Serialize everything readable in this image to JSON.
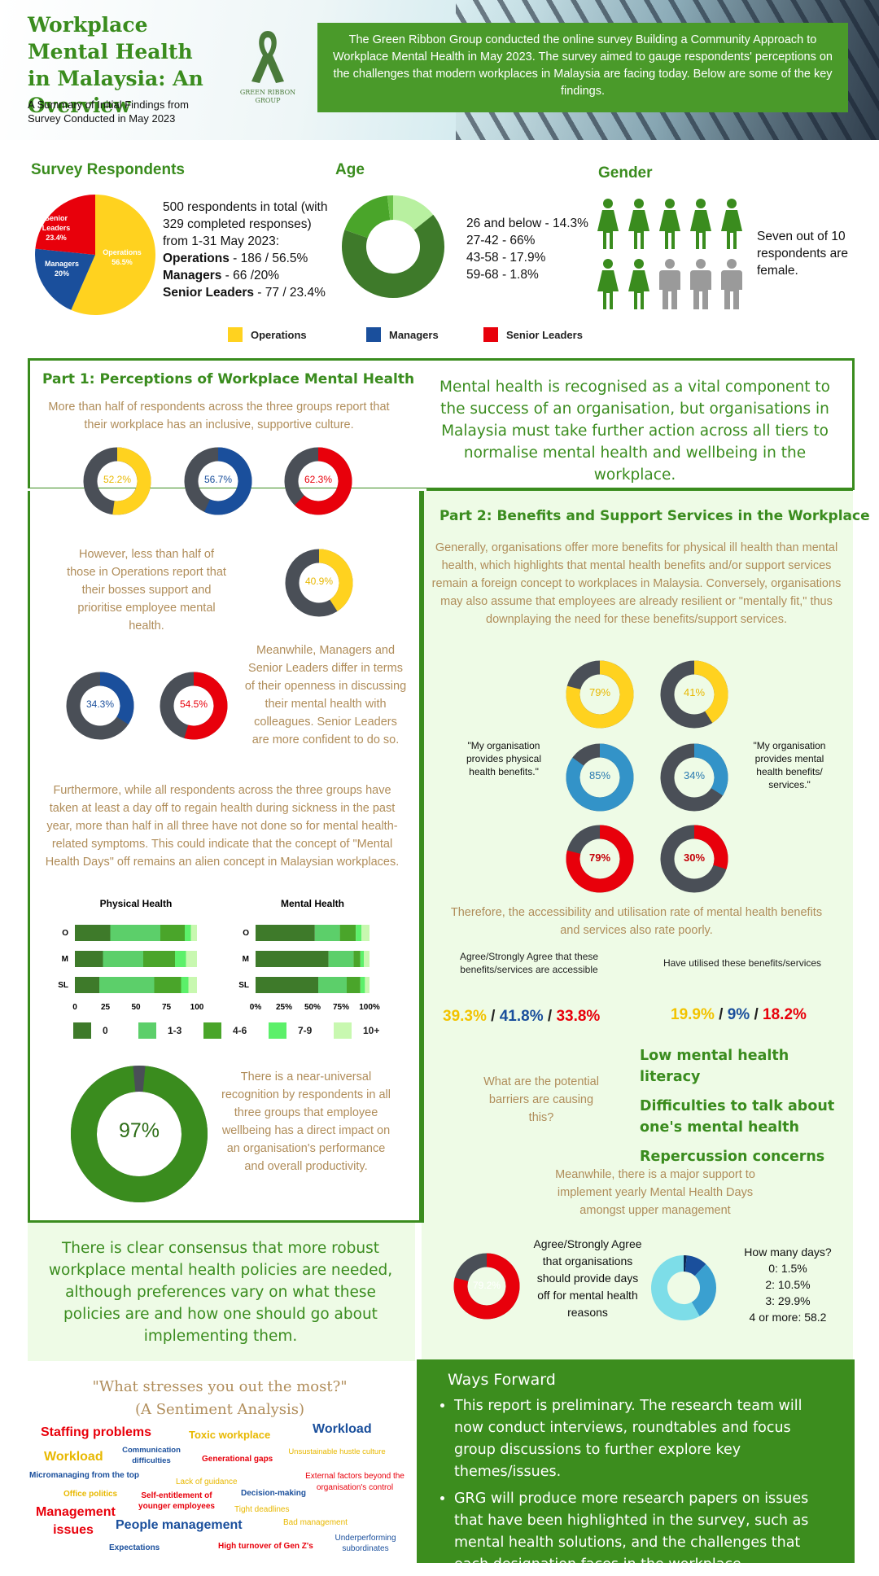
{
  "header": {
    "title": "Workplace Mental Health in Malaysia: An Overview",
    "subtitle": "A Summary of Initial Findings from Survey Conducted in May 2023",
    "logo_text_1": "GREEN RIBBON",
    "logo_text_2": "GROUP",
    "intro": "The Green Ribbon Group conducted the online survey Building a Community Approach to Workplace Mental Health in May 2023. The survey aimed to gauge respondents' perceptions on the challenges that modern workplaces in Malaysia are facing today. Below are some of the key findings."
  },
  "respondents": {
    "heading": "Survey Respondents",
    "line1": "500 respondents in total (with 329 completed responses) from 1-31 May 2023:",
    "ops_label": "Operations",
    "ops_value": " - 186 / 56.5%",
    "mgr_label": "Managers",
    "mgr_value": " - 66 /20%",
    "sl_label": "Senior Leaders",
    "sl_value": " - 77 / 23.4%",
    "pie_ops": "Operations 56.5%",
    "pie_mgr": "Managers 20%",
    "pie_sl": "Senior Leaders 23.4%"
  },
  "age": {
    "heading": "Age",
    "lines": [
      "26 and below - 14.3%",
      "27-42 - 66%",
      "43-58 - 17.9%",
      "59-68 - 1.8%"
    ]
  },
  "gender": {
    "heading": "Gender",
    "text": "Seven out of 10 respondents are female.",
    "female_of_ten": 7
  },
  "legend": {
    "ops": "Operations",
    "mgr": "Managers",
    "sl": "Senior Leaders"
  },
  "colors": {
    "ops": "#ffd21f",
    "mgr": "#1a4f9c",
    "sl": "#e8000b",
    "green": "#3a8c1e",
    "dark": "#4a4f57",
    "teal": "#3393c8"
  },
  "part1": {
    "heading": "Part 1: Perceptions of Workplace Mental Health",
    "callout": "Mental health is recognised as a vital component to the success of an organisation, but organisations in Malaysia must take further action across all tiers to normalise mental health and wellbeing in the workplace.",
    "p1": "More than half of respondents across the three groups report that their workplace has an inclusive, supportive culture.",
    "donuts1": [
      "52.2%",
      "56.7%",
      "62.3%"
    ],
    "p2": "However, less than half of those in Operations report that their bosses support and prioritise employee mental health.",
    "donut2": "40.9%",
    "p3": "Meanwhile, Managers and Senior Leaders differ in terms of their openness in discussing their mental health with colleagues. Senior Leaders are more confident to do so.",
    "donuts3": [
      "34.3%",
      "54.5%"
    ],
    "p4": "Furthermore, while all respondents across the three groups have taken at least a day off to regain health during sickness in the past year, more than half in all three have not done so for mental health-related symptoms. This could indicate that the concept of \"Mental Health Days\" off remains an alien concept in Malaysian workplaces.",
    "p5": "There is a near-universal recognition by respondents in all three groups that employee wellbeing has a direct impact on an organisation's performance and overall productivity.",
    "big_donut": "97%"
  },
  "chart_data": [
    {
      "type": "bar",
      "title": "Physical Health",
      "categories": [
        "O",
        "M",
        "SL"
      ],
      "xlim": [
        0,
        100
      ],
      "xticks": [
        "0",
        "25",
        "50",
        "75",
        "100"
      ],
      "series": [
        {
          "name": "0",
          "values": [
            29,
            23,
            20
          ]
        },
        {
          "name": "1-3",
          "values": [
            41,
            33,
            45
          ]
        },
        {
          "name": "4-6",
          "values": [
            20,
            26,
            22
          ]
        },
        {
          "name": "7-9",
          "values": [
            5,
            9,
            6
          ]
        },
        {
          "name": "10+",
          "values": [
            5,
            9,
            7
          ]
        }
      ]
    },
    {
      "type": "bar",
      "title": "Mental Health",
      "categories": [
        "O",
        "M",
        "SL"
      ],
      "xlim": [
        0,
        100
      ],
      "xticks": [
        "0%",
        "25%",
        "50%",
        "75%",
        "100%"
      ],
      "series": [
        {
          "name": "0",
          "values": [
            52,
            64,
            55
          ]
        },
        {
          "name": "1-3",
          "values": [
            22,
            22,
            25
          ]
        },
        {
          "name": "4-6",
          "values": [
            14,
            6,
            12
          ]
        },
        {
          "name": "7-9",
          "values": [
            5,
            3,
            4
          ]
        },
        {
          "name": "10+",
          "values": [
            7,
            5,
            4
          ]
        }
      ]
    }
  ],
  "barlegend": [
    "0",
    "1-3",
    "4-6",
    "7-9",
    "10+"
  ],
  "part2": {
    "heading": "Part 2: Benefits and Support Services in the Workplace",
    "p1": "Generally, organisations offer more benefits for physical ill health than mental health, which highlights that mental health benefits and/or support services remain a foreign concept to workplaces in Malaysia. Conversely, organisations may also assume that employees are already resilient or \"mentally fit,\" thus downplaying the need for these benefits/support services.",
    "left_quote": "\"My organisation provides physical health benefits.\"",
    "right_quote": "\"My organisation provides mental health benefits/ services.\"",
    "physical": [
      "79%",
      "85%",
      "79%"
    ],
    "mental": [
      "41%",
      "34%",
      "30%"
    ],
    "p2": "Therefore, the accessibility and utilisation rate of mental health benefits and services also rate poorly.",
    "access_label": "Agree/Strongly Agree that these benefits/services are accessible",
    "access_values": [
      "39.3%",
      "41.8%",
      "33.8%"
    ],
    "util_label": "Have utilised these benefits/services",
    "util_values": [
      "19.9%",
      "9%",
      "18.2%"
    ],
    "q_barriers": "What are the potential barriers are causing this?",
    "barriers": [
      "Low mental health literacy",
      "Difficulties to talk about one's mental health",
      "Repercussion concerns"
    ],
    "p3": "Meanwhile, there is a major support to implement yearly Mental Health Days amongst upper management",
    "agree_donut": "79.2%",
    "agree_text": "Agree/Strongly Agree that organisations should provide days off for mental health reasons",
    "days_heading": "How many days?",
    "days": [
      "0: 1.5%",
      "2: 10.5%",
      "3: 29.9%",
      "4 or more: 58.2"
    ]
  },
  "consensus": "There is clear consensus that more robust workplace mental health policies are needed, although preferences vary on what these policies are and how one should go about implementing them.",
  "sentiment": {
    "heading1": "\"What stresses you out the most?\"",
    "heading2": "(A Sentiment Analysis)",
    "words": [
      "Staffing problems",
      "Toxic workplace",
      "Workload",
      "Workload",
      "Communication difficulties",
      "Unsustainable hustle culture",
      "Generational gaps",
      "Micromanaging from the top",
      "Lack of guidance",
      "External factors beyond the organisation's control",
      "Office politics",
      "Self-entitlement of younger employees",
      "Decision-making",
      "Management issues",
      "Tight deadlines",
      "People management",
      "Bad management",
      "Expectations",
      "High turnover of Gen Z's",
      "Underperforming subordinates"
    ]
  },
  "ways": {
    "heading": "Ways Forward",
    "items": [
      "This report is preliminary. The research team will now conduct interviews, roundtables and focus group discussions to further explore key themes/issues.",
      "GRG will produce more research papers on issues that have been highlighted in the survey, such as mental health solutions, and the challenges that each designation faces in the workplace."
    ]
  }
}
